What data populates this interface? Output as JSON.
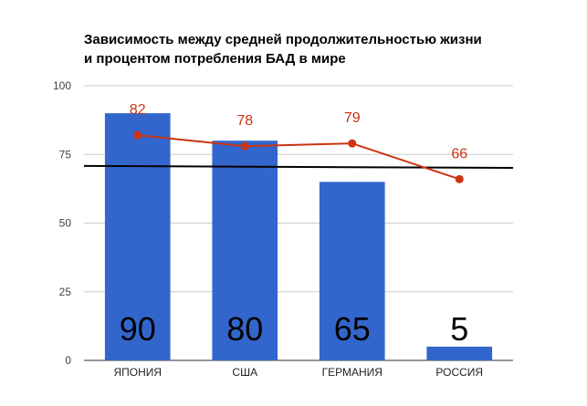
{
  "chart_data": {
    "type": "bar",
    "title_lines": [
      "Зависимость между средней продолжительностью жизни",
      "и процентом потребления БАД в мире"
    ],
    "categories": [
      "ЯПОНИЯ",
      "США",
      "ГЕРМАНИЯ",
      "РОССИЯ"
    ],
    "series": [
      {
        "values": [
          90,
          80,
          65,
          5
        ],
        "type": "bar",
        "color": "#3366cc"
      },
      {
        "values": [
          82,
          78,
          79,
          66
        ],
        "type": "line",
        "color": "#cc3311"
      }
    ],
    "bar_labels": [
      "90",
      "80",
      "65",
      "5"
    ],
    "line_labels": [
      "82",
      "78",
      "79",
      "66"
    ],
    "trend_line": {
      "y_start": 70.8,
      "y_end": 70.1,
      "color": "#000000"
    },
    "ylim": [
      0,
      100
    ],
    "yticks": [
      0,
      25,
      50,
      75,
      100
    ],
    "grid": true
  }
}
